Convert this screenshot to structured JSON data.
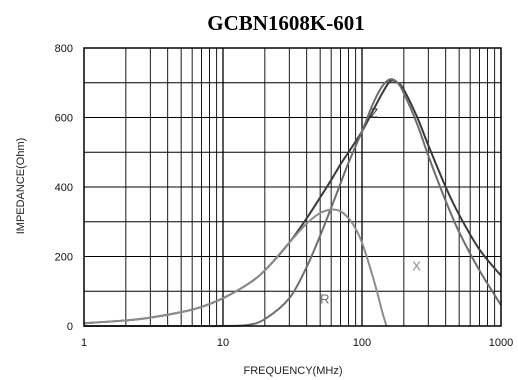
{
  "chart_data": {
    "type": "line",
    "title": "GCBN1608K-601",
    "xlabel": "FREQUENCY(MHz)",
    "ylabel": "IMPEDANCE(Ohm)",
    "x_scale": "log",
    "xlim": [
      1,
      1000
    ],
    "ylim": [
      0,
      800
    ],
    "x_ticks": [
      "1",
      "10",
      "100",
      "1000"
    ],
    "y_ticks": [
      "0",
      "200",
      "400",
      "600",
      "800"
    ],
    "grid": true,
    "colors": {
      "Z": "#3a3a3a",
      "R": "#6e6e6e",
      "X": "#8c8c8c",
      "grid": "#000000"
    },
    "series": [
      {
        "name": "Z",
        "x": [
          1,
          2,
          3,
          5,
          7,
          10,
          15,
          20,
          30,
          40,
          50,
          60,
          70,
          80,
          100,
          120,
          140,
          160,
          180,
          200,
          250,
          300,
          400,
          500,
          700,
          1000
        ],
        "y": [
          8,
          16,
          24,
          40,
          55,
          80,
          120,
          160,
          240,
          310,
          370,
          420,
          465,
          500,
          560,
          620,
          670,
          705,
          700,
          680,
          600,
          520,
          400,
          320,
          220,
          145
        ]
      },
      {
        "name": "R",
        "x": [
          1,
          5,
          10,
          15,
          20,
          30,
          40,
          50,
          60,
          70,
          80,
          100,
          120,
          140,
          160,
          180,
          200,
          250,
          300,
          400,
          500,
          700,
          1000
        ],
        "y": [
          0,
          0,
          0,
          3,
          20,
          80,
          170,
          260,
          340,
          410,
          470,
          560,
          640,
          690,
          710,
          700,
          670,
          580,
          490,
          360,
          270,
          160,
          60
        ]
      },
      {
        "name": "X",
        "x": [
          1,
          2,
          3,
          5,
          7,
          10,
          15,
          20,
          30,
          40,
          50,
          60,
          70,
          80,
          90,
          100,
          110,
          120,
          130,
          140,
          150
        ],
        "y": [
          8,
          16,
          24,
          40,
          55,
          80,
          120,
          160,
          240,
          295,
          325,
          335,
          330,
          310,
          280,
          240,
          190,
          140,
          90,
          40,
          0
        ]
      }
    ]
  }
}
